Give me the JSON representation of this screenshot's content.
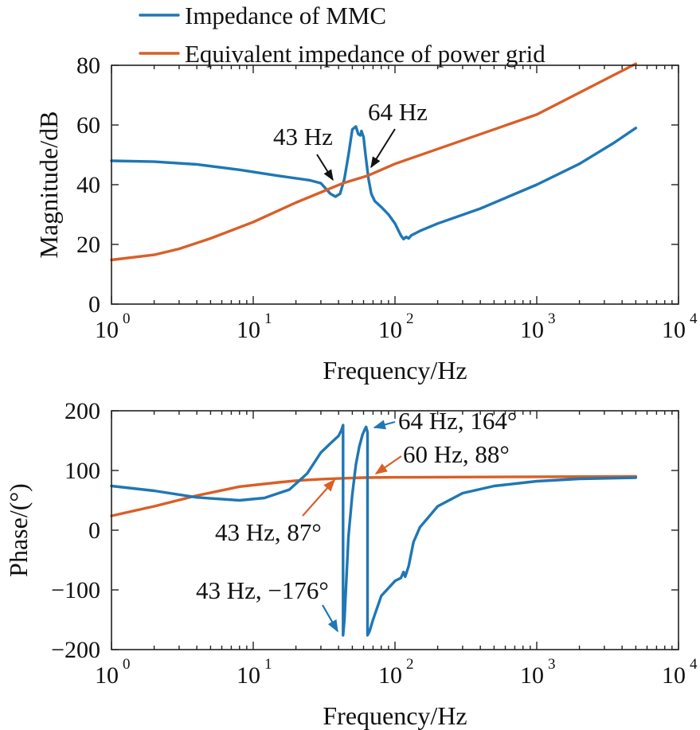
{
  "colors": {
    "mmc": "#1f77b4",
    "grid": "#d95f27",
    "axis": "#222222",
    "text": "#111111"
  },
  "legend": [
    {
      "label": "Impedance of MMC",
      "color": "#1f77b4"
    },
    {
      "label": "Equivalent impedance of power grid",
      "color": "#d95f27"
    }
  ],
  "chart_data": [
    {
      "type": "line",
      "xlabel": "Frequency/Hz",
      "ylabel": "Magnitude/dB",
      "xscale": "log",
      "xlim": [
        1,
        10000
      ],
      "ylim": [
        0,
        80
      ],
      "yticks": [
        0,
        20,
        40,
        60,
        80
      ],
      "xticks": [
        {
          "base": "10",
          "exp": "0"
        },
        {
          "base": "10",
          "exp": "1"
        },
        {
          "base": "10",
          "exp": "2"
        },
        {
          "base": "10",
          "exp": "3"
        },
        {
          "base": "10",
          "exp": "4"
        }
      ],
      "series": [
        {
          "name": "Impedance of MMC",
          "color": "#1f77b4",
          "points": [
            [
              1,
              48
            ],
            [
              2,
              47.7
            ],
            [
              4,
              46.8
            ],
            [
              8,
              45
            ],
            [
              15,
              43
            ],
            [
              25,
              41.5
            ],
            [
              30,
              40.5
            ],
            [
              35,
              37
            ],
            [
              38,
              36
            ],
            [
              41,
              37
            ],
            [
              44,
              42
            ],
            [
              47,
              50
            ],
            [
              50,
              58.5
            ],
            [
              53,
              59.5
            ],
            [
              55,
              57
            ],
            [
              57,
              56.5
            ],
            [
              58,
              58
            ],
            [
              60,
              56
            ],
            [
              62,
              50
            ],
            [
              65,
              42
            ],
            [
              68,
              37
            ],
            [
              72,
              34.5
            ],
            [
              80,
              32.5
            ],
            [
              90,
              30
            ],
            [
              100,
              27
            ],
            [
              110,
              23
            ],
            [
              115,
              21.8
            ],
            [
              120,
              22.5
            ],
            [
              125,
              22
            ],
            [
              130,
              23
            ],
            [
              150,
              24.5
            ],
            [
              200,
              27
            ],
            [
              400,
              32
            ],
            [
              1000,
              40
            ],
            [
              2000,
              47
            ],
            [
              3500,
              54
            ],
            [
              5000,
              59
            ]
          ]
        },
        {
          "name": "Equivalent impedance of power grid",
          "color": "#d95f27",
          "points": [
            [
              1,
              14.8
            ],
            [
              2,
              16.5
            ],
            [
              3,
              18.5
            ],
            [
              5,
              22
            ],
            [
              10,
              27.5
            ],
            [
              20,
              34
            ],
            [
              43,
              40.5
            ],
            [
              64,
              43
            ],
            [
              100,
              47
            ],
            [
              1000,
              63.5
            ],
            [
              5000,
              80.5
            ]
          ]
        }
      ],
      "annotations": [
        {
          "text": "43 Hz",
          "x": 43,
          "y": 40,
          "color": "#111111"
        },
        {
          "text": "64 Hz",
          "x": 64,
          "y": 43,
          "color": "#111111"
        }
      ]
    },
    {
      "type": "line",
      "xlabel": "Frequency/Hz",
      "ylabel": "Phase/(°)",
      "xscale": "log",
      "xlim": [
        1,
        10000
      ],
      "ylim": [
        -200,
        200
      ],
      "yticks": [
        -200,
        -100,
        0,
        100,
        200
      ],
      "ytick_labels": [
        "−200",
        "−100",
        "0",
        "100",
        "200"
      ],
      "xticks": [
        {
          "base": "10",
          "exp": "0"
        },
        {
          "base": "10",
          "exp": "1"
        },
        {
          "base": "10",
          "exp": "2"
        },
        {
          "base": "10",
          "exp": "3"
        },
        {
          "base": "10",
          "exp": "4"
        }
      ],
      "series": [
        {
          "name": "Impedance of MMC",
          "color": "#1f77b4",
          "points": [
            [
              1,
              74
            ],
            [
              2,
              66
            ],
            [
              4,
              55
            ],
            [
              8,
              50
            ],
            [
              12,
              54
            ],
            [
              18,
              68
            ],
            [
              24,
              95
            ],
            [
              30,
              130
            ],
            [
              36,
              148
            ],
            [
              40,
              158
            ],
            [
              42,
              168
            ],
            [
              43,
              176
            ],
            [
              43.01,
              -176
            ],
            [
              44,
              -150
            ],
            [
              47,
              -10
            ],
            [
              50,
              60
            ],
            [
              53,
              110
            ],
            [
              56,
              140
            ],
            [
              59,
              160
            ],
            [
              61,
              168
            ],
            [
              62.5,
              173
            ],
            [
              64,
              164
            ],
            [
              64.01,
              -176
            ],
            [
              66,
              -170
            ],
            [
              70,
              -150
            ],
            [
              80,
              -110
            ],
            [
              100,
              -85
            ],
            [
              110,
              -80
            ],
            [
              115,
              -70
            ],
            [
              118,
              -78
            ],
            [
              125,
              -60
            ],
            [
              135,
              -20
            ],
            [
              150,
              5
            ],
            [
              200,
              40
            ],
            [
              300,
              62
            ],
            [
              500,
              74
            ],
            [
              1000,
              82
            ],
            [
              2000,
              86
            ],
            [
              5000,
              88
            ]
          ]
        },
        {
          "name": "Equivalent impedance of power grid",
          "color": "#d95f27",
          "points": [
            [
              1,
              24
            ],
            [
              2,
              40
            ],
            [
              4,
              58
            ],
            [
              8,
              73
            ],
            [
              15,
              80
            ],
            [
              20,
              83
            ],
            [
              30,
              85.5
            ],
            [
              43,
              87
            ],
            [
              60,
              88
            ],
            [
              100,
              88.5
            ],
            [
              1000,
              89.5
            ],
            [
              5000,
              90
            ]
          ]
        }
      ],
      "annotations": [
        {
          "text": "64 Hz, 164°",
          "x": 64,
          "y": 164,
          "color": "#1f77b4"
        },
        {
          "text": "60 Hz, 88°",
          "x": 60,
          "y": 88,
          "color": "#d95f27"
        },
        {
          "text": "43 Hz, 87°",
          "x": 43,
          "y": 87,
          "color": "#d95f27"
        },
        {
          "text": "43 Hz, −176°",
          "x": 43,
          "y": -176,
          "color": "#1f77b4"
        }
      ]
    }
  ]
}
